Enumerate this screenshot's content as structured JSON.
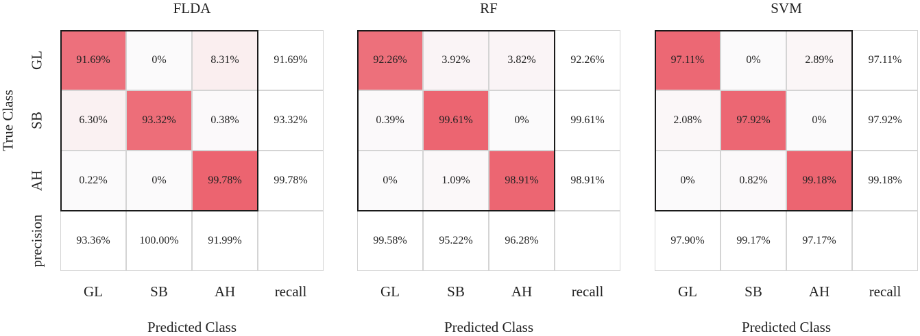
{
  "chart_data": [
    {
      "type": "heatmap",
      "title": "FLDA",
      "row_labels": [
        "GL",
        "SB",
        "AH",
        "precision"
      ],
      "col_labels": [
        "GL",
        "SB",
        "AH",
        "recall"
      ],
      "ylabel": "True Class",
      "xlabel": "Predicted Class",
      "matrix": [
        [
          91.69,
          0,
          8.31
        ],
        [
          6.3,
          93.32,
          0.38
        ],
        [
          0.22,
          0,
          99.78
        ]
      ],
      "matrix_text": [
        [
          "91.69%",
          "0%",
          "8.31%"
        ],
        [
          "6.30%",
          "93.32%",
          "0.38%"
        ],
        [
          "0.22%",
          "0%",
          "99.78%"
        ]
      ],
      "recall": [
        "91.69%",
        "93.32%",
        "99.78%"
      ],
      "precision": [
        "93.36%",
        "100.00%",
        "91.99%"
      ]
    },
    {
      "type": "heatmap",
      "title": "RF",
      "row_labels": [
        "GL",
        "SB",
        "AH",
        "precision"
      ],
      "col_labels": [
        "GL",
        "SB",
        "AH",
        "recall"
      ],
      "ylabel": "",
      "xlabel": "Predicted Class",
      "matrix": [
        [
          92.26,
          3.92,
          3.82
        ],
        [
          0.39,
          99.61,
          0
        ],
        [
          0,
          1.09,
          98.91
        ]
      ],
      "matrix_text": [
        [
          "92.26%",
          "3.92%",
          "3.82%"
        ],
        [
          "0.39%",
          "99.61%",
          "0%"
        ],
        [
          "0%",
          "1.09%",
          "98.91%"
        ]
      ],
      "recall": [
        "92.26%",
        "99.61%",
        "98.91%"
      ],
      "precision": [
        "99.58%",
        "95.22%",
        "96.28%"
      ]
    },
    {
      "type": "heatmap",
      "title": "SVM",
      "row_labels": [
        "GL",
        "SB",
        "AH",
        "precision"
      ],
      "col_labels": [
        "GL",
        "SB",
        "AH",
        "recall"
      ],
      "ylabel": "",
      "xlabel": "Predicted Class",
      "matrix": [
        [
          97.11,
          0,
          2.89
        ],
        [
          2.08,
          97.92,
          0
        ],
        [
          0,
          0.82,
          99.18
        ]
      ],
      "matrix_text": [
        [
          "97.11%",
          "0%",
          "2.89%"
        ],
        [
          "2.08%",
          "97.92%",
          "0%"
        ],
        [
          "0%",
          "0.82%",
          "99.18%"
        ]
      ],
      "recall": [
        "97.11%",
        "97.92%",
        "99.18%"
      ],
      "precision": [
        "97.90%",
        "99.17%",
        "97.17%"
      ]
    }
  ],
  "colors": {
    "high": "#ec6470",
    "low": "#fbfafb",
    "border": "#1a1a1a",
    "grid": "#d4d4d4"
  }
}
